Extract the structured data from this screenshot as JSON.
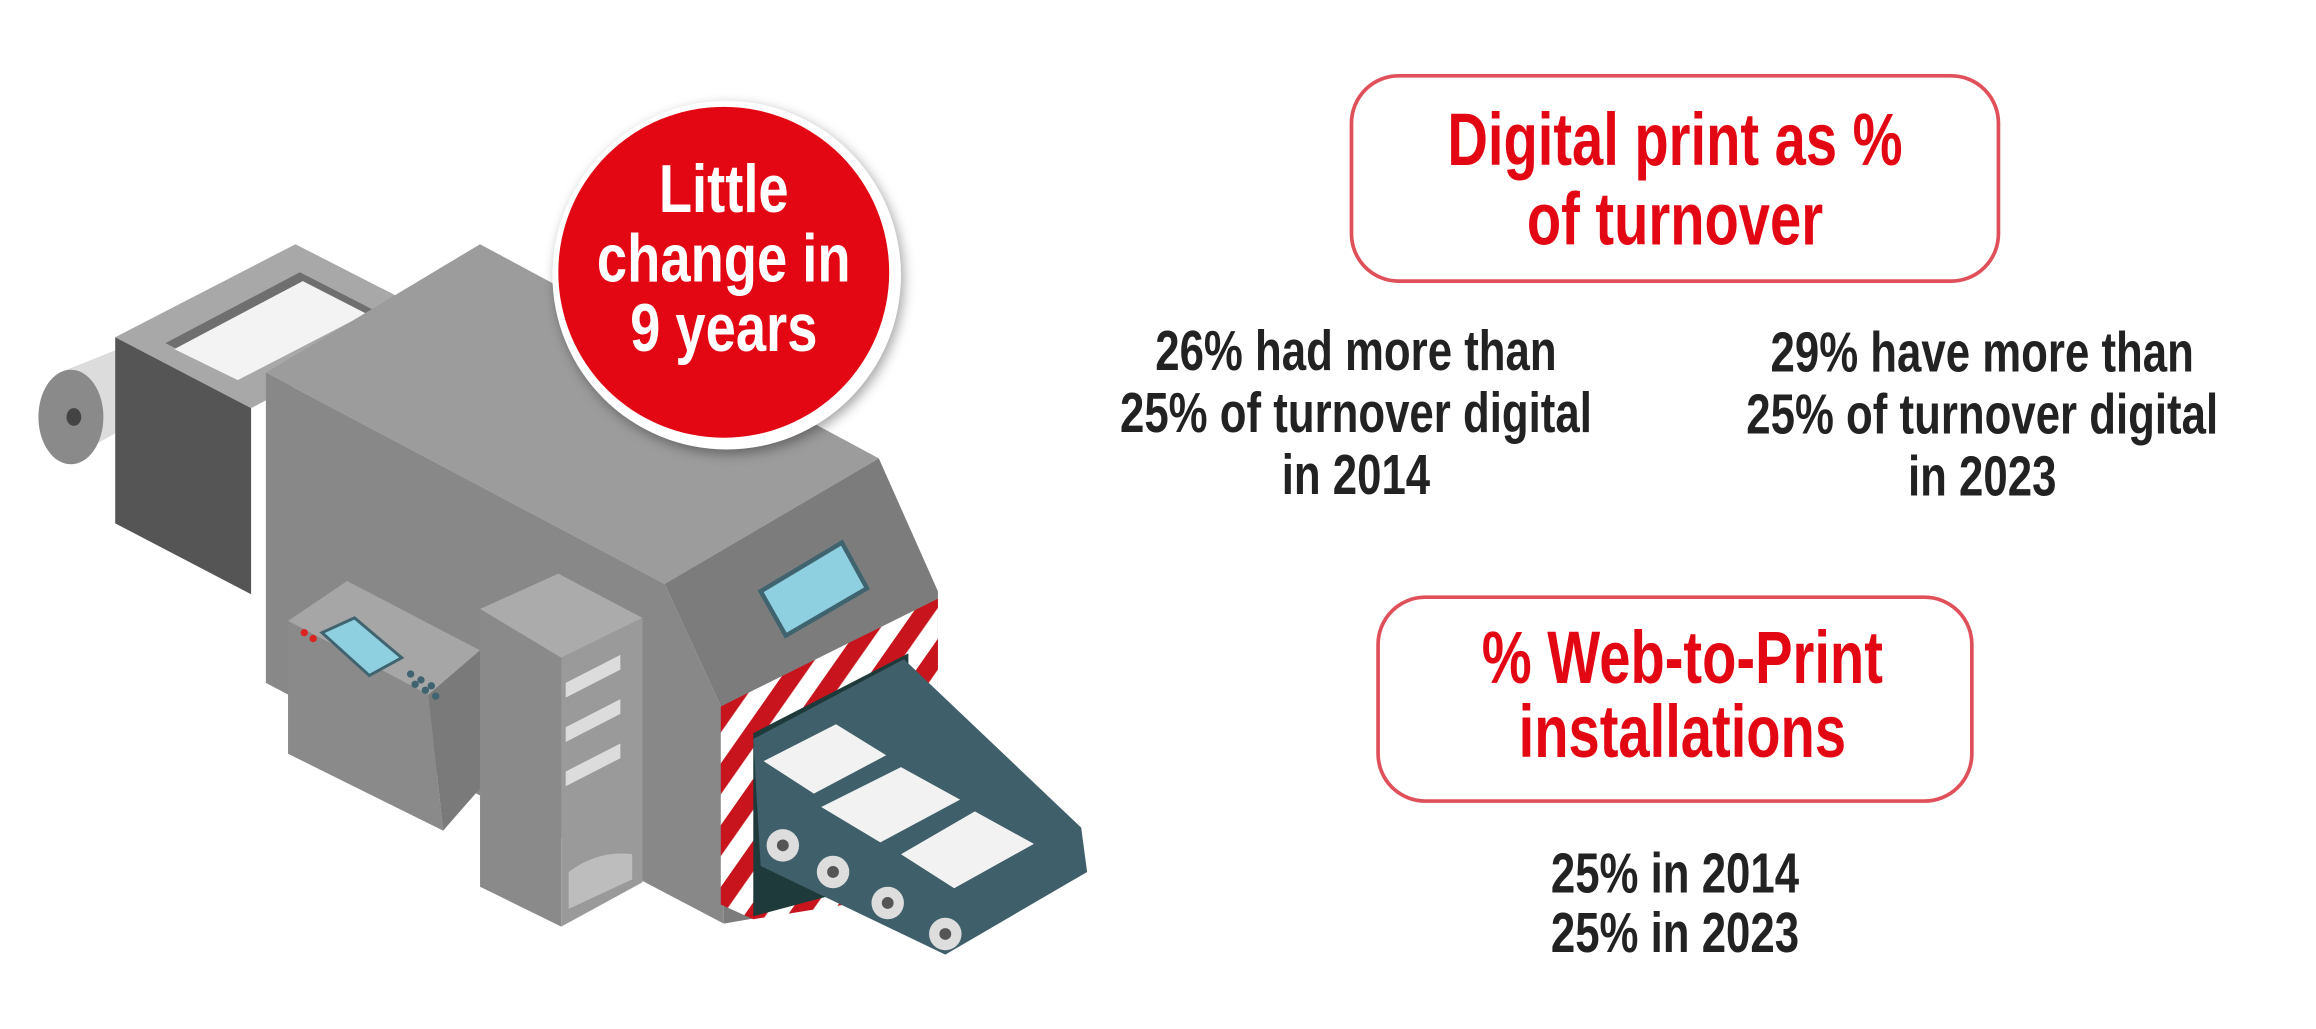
{
  "badge": {
    "lines": [
      "Little",
      "change in",
      "9 years"
    ]
  },
  "digital_print": {
    "title": {
      "lines": [
        "Digital print as %",
        "of turnover"
      ]
    },
    "stats": [
      {
        "lines": [
          "26% had more than",
          "25% of turnover digital",
          "in 2014"
        ]
      },
      {
        "lines": [
          "29% have more than",
          "25% of turnover digital",
          "in 2023"
        ]
      }
    ]
  },
  "web_to_print": {
    "title": {
      "lines": [
        "% Web-to-Print",
        "installations"
      ]
    },
    "stat": {
      "lines": [
        "25% in 2014",
        "25% in 2023"
      ]
    }
  }
}
